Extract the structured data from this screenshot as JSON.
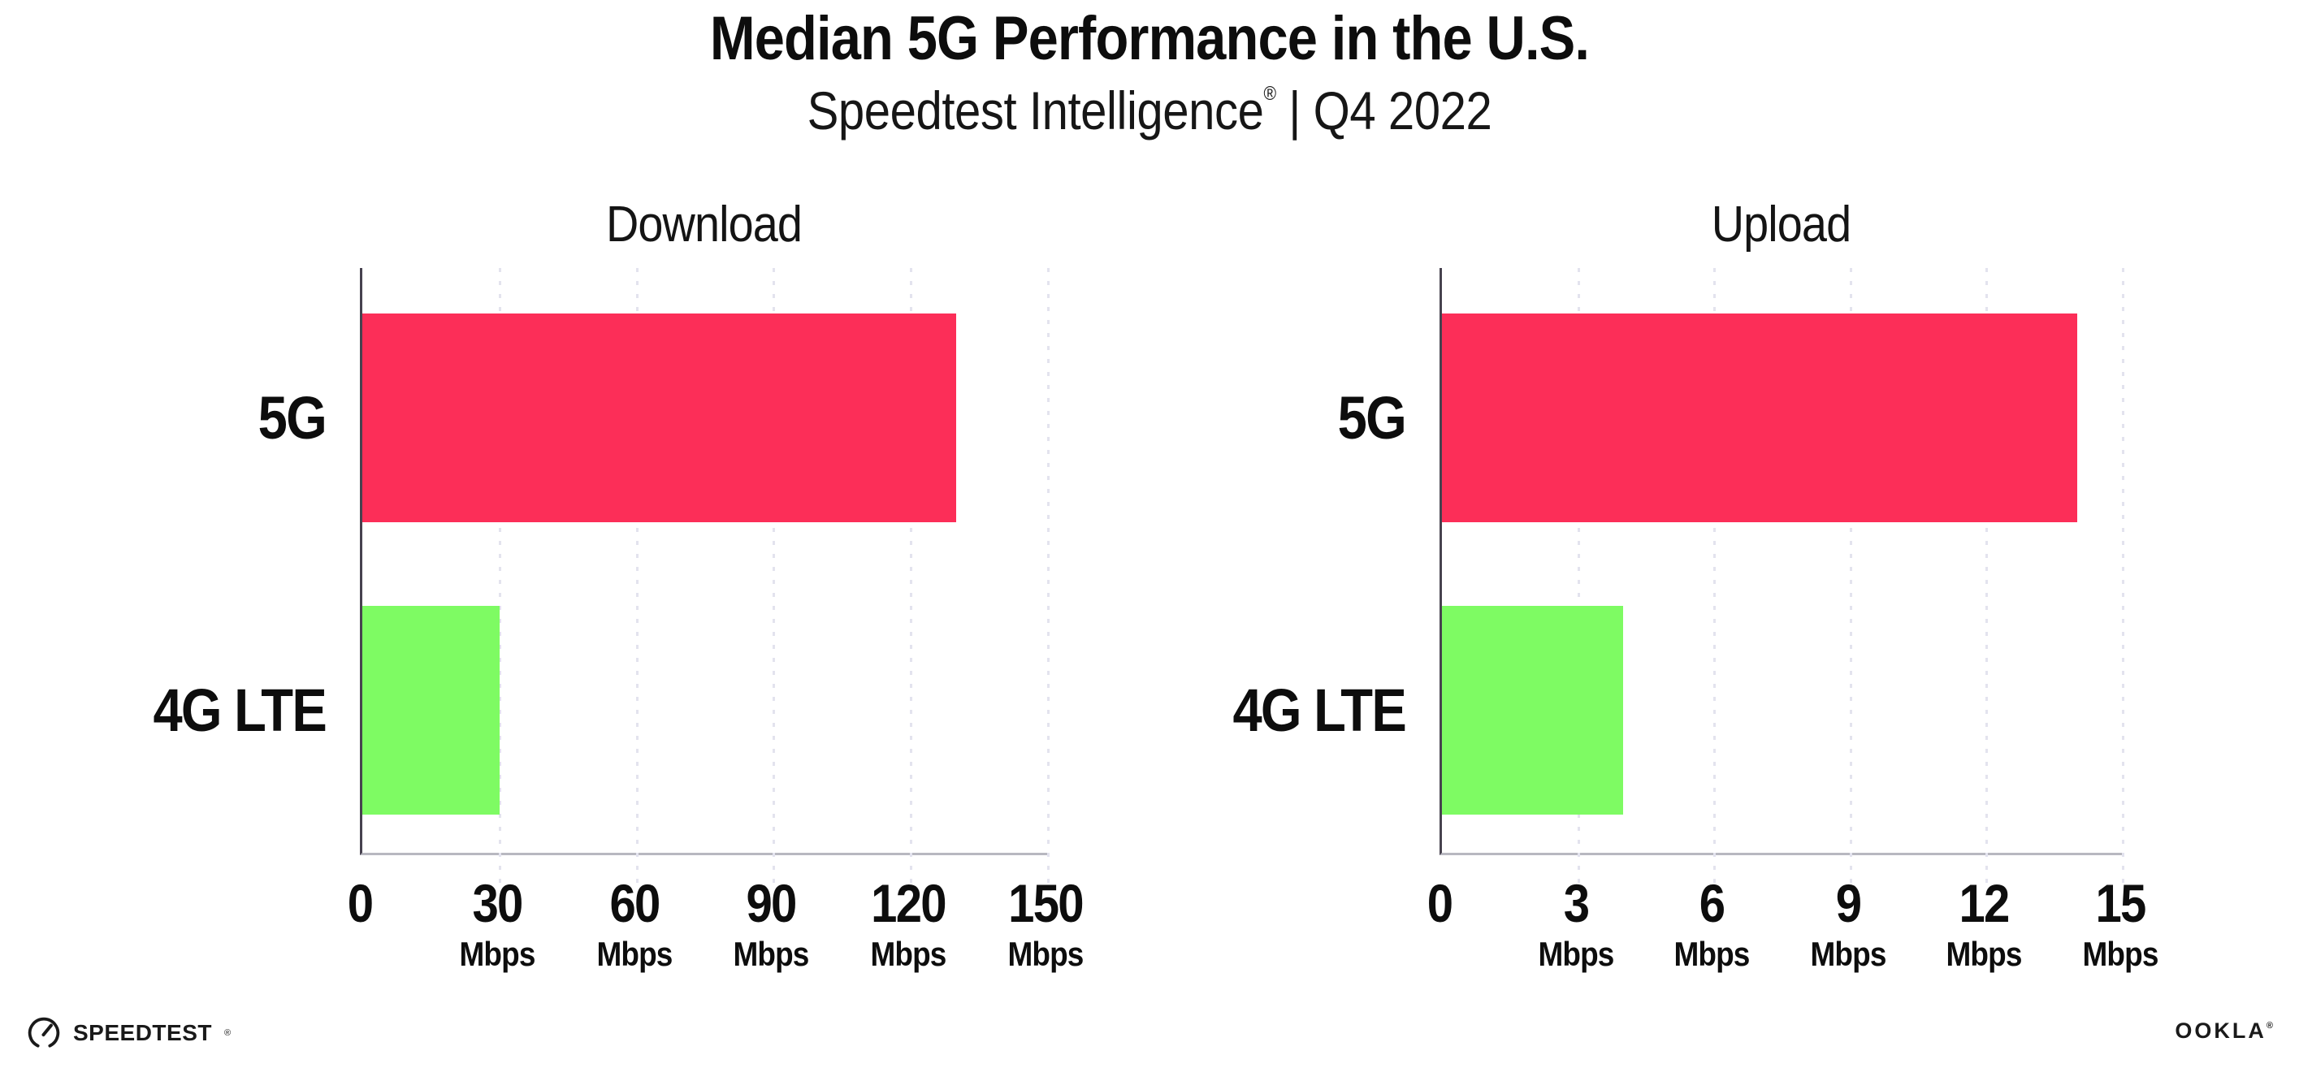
{
  "header": {
    "title": "Median 5G Performance in the U.S.",
    "subtitle_brand": "Speedtest Intelligence",
    "subtitle_reg": "®",
    "subtitle_rest": " | Q4 2022"
  },
  "footer": {
    "speedtest_wordmark": "SPEEDTEST",
    "speedtest_mark": "®",
    "ookla_wordmark": "OOKLA",
    "ookla_mark": "®"
  },
  "colors": {
    "bar_5g": "#fc2e58",
    "bar_4g_lte": "#7efb63",
    "grid_dotted": "#e3e3ee",
    "axis_y": "#47424f",
    "axis_x": "#b8b8c0",
    "text": "#0d0d0d"
  },
  "chart_data": [
    {
      "type": "bar",
      "orientation": "horizontal",
      "title": "Download",
      "categories": [
        "5G",
        "4G LTE"
      ],
      "values": [
        130,
        30
      ],
      "unit": "Mbps",
      "xlim": [
        0,
        150
      ],
      "xticks": [
        0,
        30,
        60,
        90,
        120,
        150
      ],
      "tick_unit_label": "Mbps",
      "grid": "dotted-vertical",
      "legend": "none"
    },
    {
      "type": "bar",
      "orientation": "horizontal",
      "title": "Upload",
      "categories": [
        "5G",
        "4G LTE"
      ],
      "values": [
        14,
        4
      ],
      "unit": "Mbps",
      "xlim": [
        0,
        15
      ],
      "xticks": [
        0,
        3,
        6,
        9,
        12,
        15
      ],
      "tick_unit_label": "Mbps",
      "grid": "dotted-vertical",
      "legend": "none"
    }
  ]
}
